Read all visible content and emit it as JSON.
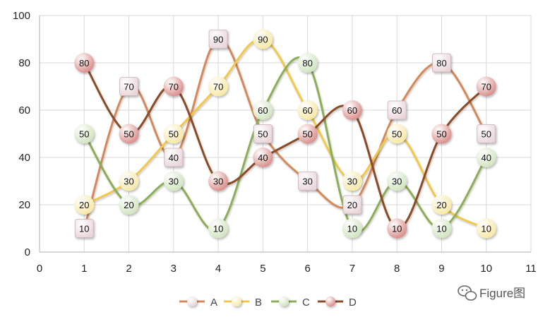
{
  "chart_data": {
    "type": "line",
    "title": "",
    "xlabel": "",
    "ylabel": "",
    "xlim": [
      0,
      11
    ],
    "ylim": [
      0,
      100
    ],
    "xticks": [
      0,
      1,
      2,
      3,
      4,
      5,
      6,
      7,
      8,
      9,
      10,
      11
    ],
    "yticks": [
      0,
      20,
      40,
      60,
      80,
      100
    ],
    "grid": true,
    "smooth": true,
    "legend_position": "bottom",
    "series": [
      {
        "name": "A",
        "color": "#d4895a",
        "marker": "square",
        "marker_color": "#ead6da",
        "x": [
          1,
          2,
          3,
          4,
          5,
          6,
          7,
          8,
          9,
          10
        ],
        "values": [
          10,
          70,
          40,
          90,
          50,
          30,
          20,
          60,
          80,
          50
        ]
      },
      {
        "name": "B",
        "color": "#f2c84b",
        "marker": "circle",
        "marker_color": "#f7e7a0",
        "x": [
          1,
          2,
          3,
          4,
          5,
          6,
          7,
          8,
          9,
          10
        ],
        "values": [
          20,
          30,
          50,
          70,
          90,
          60,
          30,
          50,
          20,
          10
        ]
      },
      {
        "name": "C",
        "color": "#8cae58",
        "marker": "circle",
        "marker_color": "#cfe3bd",
        "x": [
          1,
          2,
          3,
          4,
          5,
          6,
          7,
          8,
          9,
          10
        ],
        "values": [
          50,
          20,
          30,
          10,
          60,
          80,
          10,
          30,
          10,
          40
        ]
      },
      {
        "name": "D",
        "color": "#8a4c28",
        "marker": "circle",
        "marker_color": "#d98a86",
        "x": [
          1,
          2,
          3,
          4,
          5,
          6,
          7,
          8,
          9,
          10
        ],
        "values": [
          80,
          50,
          70,
          30,
          40,
          50,
          60,
          10,
          50,
          70
        ]
      }
    ]
  },
  "watermark": {
    "text": "Figure图",
    "icon": "wechat-icon"
  }
}
